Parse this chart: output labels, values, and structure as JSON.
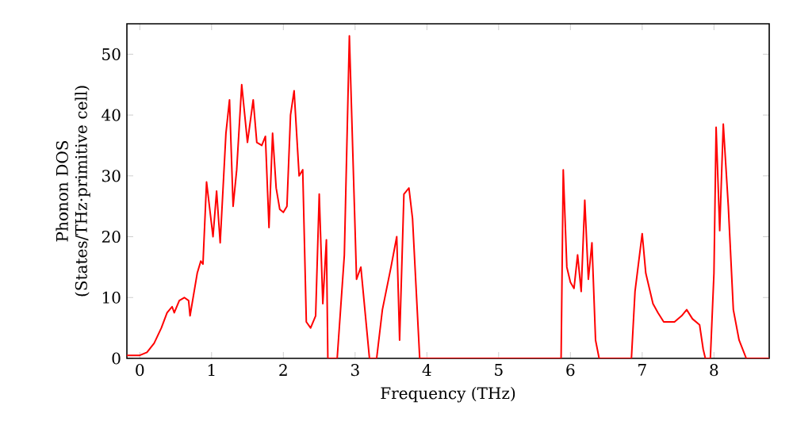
{
  "chart_data": {
    "type": "line",
    "xlabel": "Frequency (THz)",
    "ylabel": "Phonon DOS (States/THz·primitive cell)",
    "xlim": [
      -0.18,
      8.77
    ],
    "ylim": [
      0,
      55
    ],
    "xticks": [
      0,
      1,
      2,
      3,
      4,
      5,
      6,
      7,
      8
    ],
    "yticks": [
      0,
      10,
      20,
      30,
      40,
      50
    ],
    "grid": false,
    "marker": "none",
    "line_style": "solid",
    "series": [
      {
        "color": "#ff0000",
        "x": [
          -0.18,
          0,
          0.1,
          0.2,
          0.3,
          0.38,
          0.45,
          0.48,
          0.55,
          0.62,
          0.68,
          0.7,
          0.8,
          0.85,
          0.88,
          0.93,
          1.02,
          1.07,
          1.12,
          1.2,
          1.25,
          1.3,
          1.35,
          1.42,
          1.5,
          1.58,
          1.63,
          1.7,
          1.75,
          1.8,
          1.85,
          1.9,
          1.95,
          2.0,
          2.05,
          2.1,
          2.15,
          2.22,
          2.27,
          2.32,
          2.38,
          2.45,
          2.5,
          2.55,
          2.6,
          2.62,
          2.75,
          2.85,
          2.92,
          3.02,
          3.08,
          3.2,
          3.3,
          3.38,
          3.5,
          3.58,
          3.62,
          3.68,
          3.75,
          3.8,
          3.9,
          5.87,
          5.9,
          5.95,
          6.0,
          6.05,
          6.1,
          6.15,
          6.2,
          6.25,
          6.3,
          6.35,
          6.4,
          6.85,
          6.9,
          7.0,
          7.05,
          7.15,
          7.22,
          7.3,
          7.45,
          7.55,
          7.62,
          7.7,
          7.8,
          7.85,
          7.88,
          7.95,
          8.0,
          8.03,
          8.08,
          8.13,
          8.2,
          8.27,
          8.35,
          8.45,
          8.77
        ],
        "values": [
          0.5,
          0.5,
          1,
          2.5,
          5,
          7.5,
          8.5,
          7.5,
          9.5,
          10,
          9.5,
          7,
          14,
          16,
          15.5,
          29,
          20,
          27.5,
          19,
          37,
          42.5,
          25,
          31,
          45,
          35.5,
          42.5,
          35.5,
          35,
          36.5,
          21.5,
          37,
          28,
          24.5,
          24,
          25,
          40,
          44,
          30,
          31,
          6,
          5,
          7,
          27,
          9,
          19.5,
          0,
          0,
          17,
          53,
          13,
          15,
          0,
          0,
          8,
          15,
          20,
          3,
          27,
          28,
          23,
          0,
          0,
          31,
          15,
          12.5,
          11.5,
          17,
          11,
          26,
          13,
          19,
          3,
          0,
          0,
          11,
          20.5,
          14,
          9,
          7.5,
          6,
          6,
          7,
          8,
          6.5,
          5.5,
          1.5,
          0,
          0,
          14,
          38,
          21,
          38.5,
          25,
          8,
          3,
          0,
          0
        ]
      }
    ]
  }
}
